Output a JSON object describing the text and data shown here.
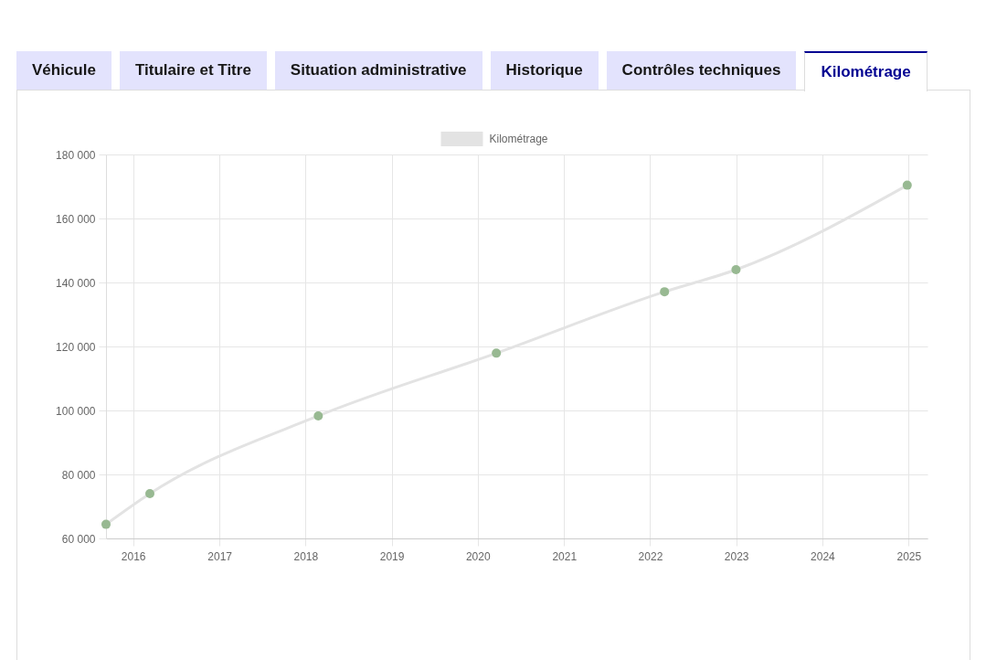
{
  "chart_data": {
    "type": "line",
    "x": [
      "2015-09-08",
      "2016-03-12",
      "2018-02-24",
      "2020-03-20",
      "2022-03-03",
      "2022-12-31",
      "2024-12-26"
    ],
    "series": [
      {
        "name": "Kilométrage",
        "color": "#e3e3e3",
        "colors": [
          "#98b992",
          "#98b992",
          "#98b992",
          "#98b992",
          "#98b992",
          "#98b992",
          "#98b992"
        ],
        "values": [
          64400,
          74000,
          98300,
          117900,
          137100,
          144000,
          170400
        ]
      }
    ],
    "xlim": [
      "2015-09-08",
      "2025-03-22"
    ],
    "xticks": [
      "2016",
      "2017",
      "2018",
      "2019",
      "2020",
      "2021",
      "2022",
      "2023",
      "2024",
      "2025"
    ],
    "ylim": [
      60000,
      180000
    ],
    "yticks": [
      {
        "value": 60000,
        "label": "60 000"
      },
      {
        "value": 80000,
        "label": "80 000"
      },
      {
        "value": 100000,
        "label": "100 000"
      },
      {
        "value": 120000,
        "label": "120 000"
      },
      {
        "value": 140000,
        "label": "140 000"
      },
      {
        "value": 160000,
        "label": "160 000"
      },
      {
        "value": 180000,
        "label": "180 000"
      }
    ],
    "grid": true,
    "legend": "top",
    "marker": "circle",
    "line_style": "solid",
    "annotations": [
      "Véhicule",
      "Titulaire et Titre",
      "Situation administrative",
      "Historique",
      "Contrôles techniques",
      "Kilométrage"
    ]
  }
}
